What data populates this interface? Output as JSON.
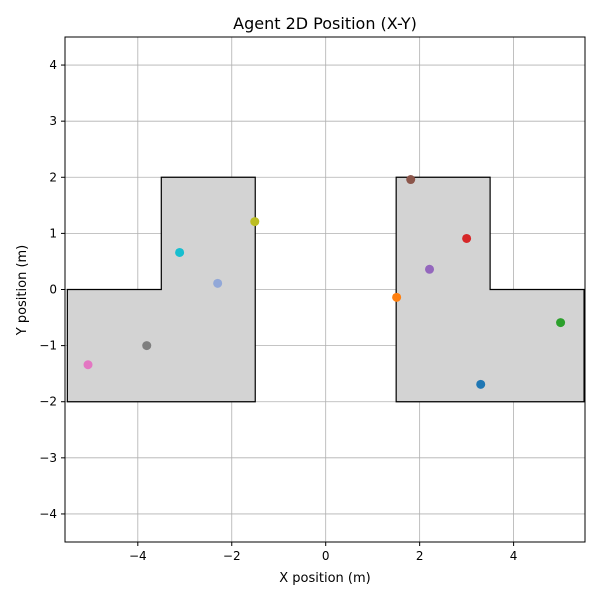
{
  "chart_data": {
    "type": "scatter",
    "title": "Agent 2D Position (X-Y)",
    "xlabel": "X position (m)",
    "ylabel": "Y position (m)",
    "xlim": [
      -5.55,
      5.52
    ],
    "ylim": [
      -4.5,
      4.5
    ],
    "xticks": [
      -4,
      -2,
      0,
      2,
      4
    ],
    "yticks": [
      -4,
      -3,
      -2,
      -1,
      0,
      1,
      2,
      3,
      4
    ],
    "grid": true,
    "obstacles": [
      {
        "fill": "#d3d3d3",
        "edge": "#000000",
        "points": [
          [
            -5.5,
            -2
          ],
          [
            -1.5,
            -2
          ],
          [
            -1.5,
            2
          ],
          [
            -3.5,
            2
          ],
          [
            -3.5,
            0
          ],
          [
            -5.5,
            0
          ]
        ]
      },
      {
        "fill": "#d3d3d3",
        "edge": "#000000",
        "points": [
          [
            1.5,
            -2
          ],
          [
            5.5,
            -2
          ],
          [
            5.5,
            0
          ],
          [
            3.5,
            0
          ],
          [
            3.5,
            2
          ],
          [
            1.5,
            2
          ]
        ]
      }
    ],
    "points": [
      {
        "x": 3.3,
        "y": -1.69,
        "color": "#1f77b4"
      },
      {
        "x": 1.51,
        "y": -0.14,
        "color": "#ff7f0e"
      },
      {
        "x": 5.0,
        "y": -0.59,
        "color": "#2ca02c"
      },
      {
        "x": 3.0,
        "y": 0.91,
        "color": "#d62728"
      },
      {
        "x": 2.21,
        "y": 0.36,
        "color": "#9467bd"
      },
      {
        "x": 1.81,
        "y": 1.96,
        "color": "#8c564b"
      },
      {
        "x": -5.06,
        "y": -1.34,
        "color": "#e377c2"
      },
      {
        "x": -3.81,
        "y": -1.0,
        "color": "#7f7f7f"
      },
      {
        "x": -1.51,
        "y": 1.21,
        "color": "#bcbd22"
      },
      {
        "x": -3.11,
        "y": 0.66,
        "color": "#17becf"
      },
      {
        "x": -2.3,
        "y": 0.11,
        "color": "#92a8d8"
      }
    ]
  }
}
